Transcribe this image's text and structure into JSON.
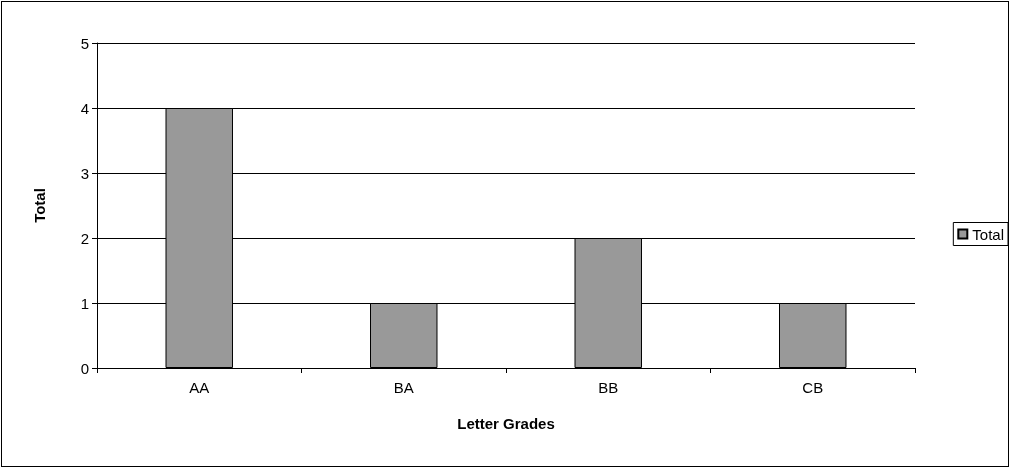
{
  "chart_data": {
    "type": "bar",
    "xlabel": "Letter Grades",
    "ylabel": "Total",
    "categories": [
      "AA",
      "BA",
      "BB",
      "CB"
    ],
    "series": [
      {
        "name": "Total",
        "color": "#999999",
        "values": [
          4,
          1,
          2,
          1
        ]
      }
    ],
    "ylim": [
      0,
      5
    ],
    "yticks": [
      0,
      1,
      2,
      3,
      4,
      5
    ],
    "grid": "y",
    "legend": "right"
  }
}
